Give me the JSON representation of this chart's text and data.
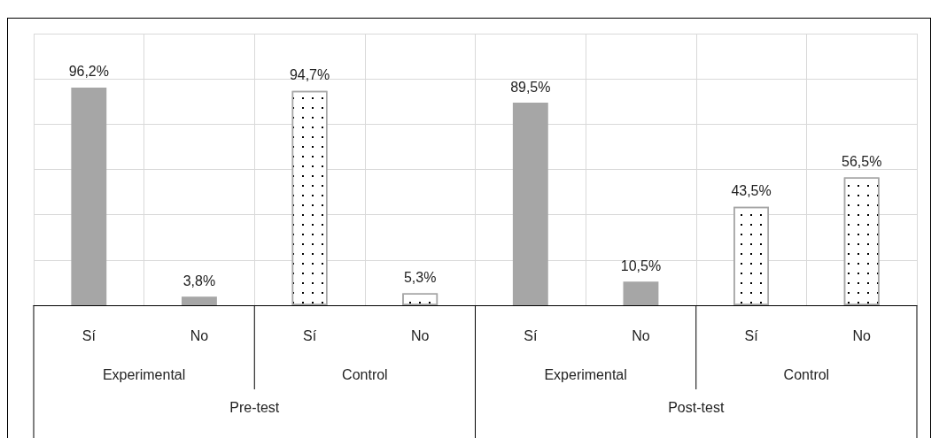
{
  "chart_data": {
    "type": "bar",
    "categories": [
      "Sí",
      "No",
      "Sí",
      "No",
      "Sí",
      "No",
      "Sí",
      "No"
    ],
    "series": [
      {
        "color": "#a6a6a6",
        "values": [
          96.2,
          3.8,
          null,
          null,
          89.5,
          10.5,
          null,
          null
        ],
        "value_labels": [
          "96,2%",
          "3,8%",
          null,
          null,
          "89,5%",
          "10,5%",
          null,
          null
        ]
      },
      {
        "color": "#ffffff",
        "values": [
          null,
          null,
          94.7,
          5.3,
          null,
          null,
          43.5,
          56.5
        ],
        "value_labels": [
          null,
          null,
          "94,7%",
          "5,3%",
          null,
          null,
          "43,5%",
          "56,5%"
        ]
      }
    ],
    "ylim": [
      0,
      120
    ],
    "yticks": [
      {
        "value": 0,
        "label": null
      },
      {
        "value": 20,
        "label": null
      },
      {
        "value": 40,
        "label": null
      },
      {
        "value": 60,
        "label": null
      },
      {
        "value": 80,
        "label": null
      },
      {
        "value": 100,
        "label": null
      },
      {
        "value": 120,
        "label": null
      }
    ],
    "grid": true,
    "annotations": [
      "Experimental",
      "Control",
      "Experimental",
      "Control",
      "Pre-test",
      "Post-test"
    ]
  }
}
